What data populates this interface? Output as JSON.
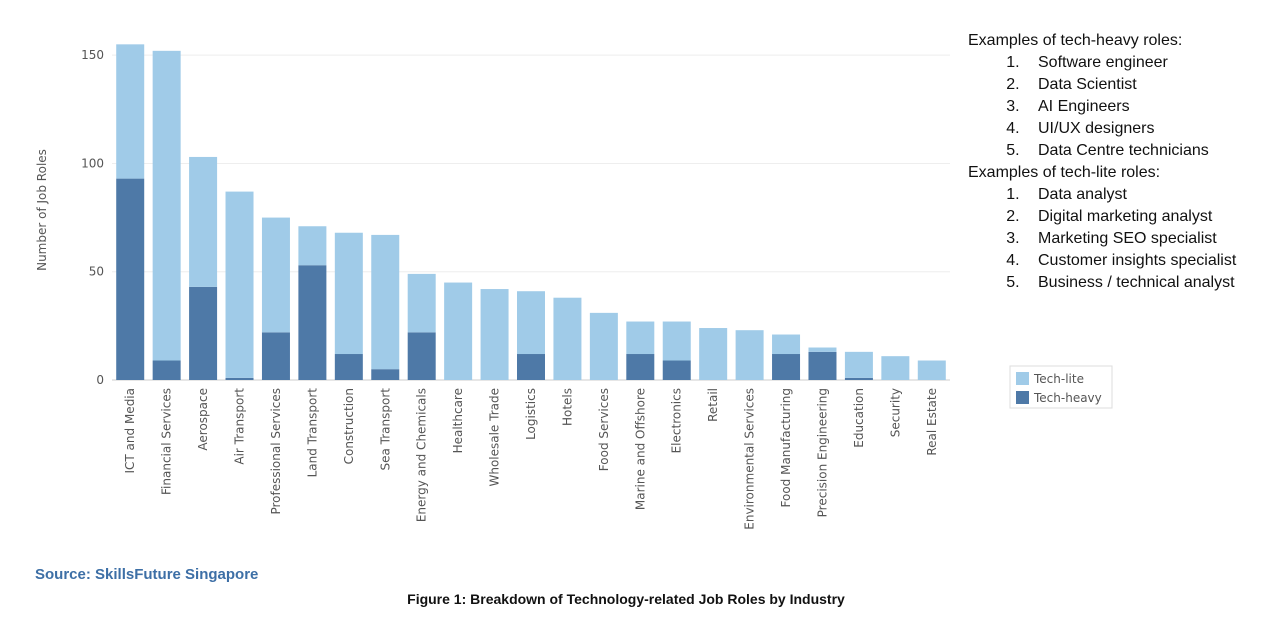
{
  "chart_data": {
    "type": "stacked_bar",
    "ylabel": "Number of Job Roles",
    "categories": [
      "ICT and Media",
      "Financial Services",
      "Aerospace",
      "Air Transport",
      "Professional Services",
      "Land Transport",
      "Construction",
      "Sea Transport",
      "Energy and Chemicals",
      "Healthcare",
      "Wholesale Trade",
      "Logistics",
      "Hotels",
      "Food Services",
      "Marine and Offshore",
      "Electronics",
      "Retail",
      "Environmental Services",
      "Food Manufacturing",
      "Precision Engineering",
      "Education",
      "Security",
      "Real Estate"
    ],
    "series": [
      {
        "name": "Tech-lite",
        "color": "#a0cbe8",
        "values": [
          62,
          143,
          60,
          86,
          53,
          18,
          56,
          62,
          27,
          45,
          42,
          29,
          38,
          31,
          15,
          18,
          24,
          23,
          9,
          2,
          12,
          11,
          9
        ]
      },
      {
        "name": "Tech-heavy",
        "color": "#4e79a7",
        "values": [
          93,
          9,
          43,
          1,
          22,
          53,
          12,
          5,
          22,
          0,
          0,
          12,
          0,
          0,
          12,
          9,
          0,
          0,
          12,
          13,
          1,
          0,
          0
        ]
      }
    ],
    "ylim": [
      0,
      157
    ],
    "yticks": [
      0,
      50,
      100,
      150
    ],
    "grid": true,
    "legend": "right"
  },
  "notes": [
    {
      "title": "Examples of tech-heavy roles:",
      "items": [
        "Software engineer",
        "Data Scientist",
        "AI Engineers",
        "UI/UX designers",
        "Data Centre technicians"
      ]
    },
    {
      "title": "Examples of tech-lite roles:",
      "items": [
        "Data analyst",
        "Digital marketing analyst",
        "Marketing SEO specialist",
        "Customer insights specialist",
        "Business / technical analyst"
      ]
    }
  ],
  "source": "Source: SkillsFuture Singapore",
  "caption": "Figure 1: Breakdown of Technology-related Job Roles by Industry"
}
